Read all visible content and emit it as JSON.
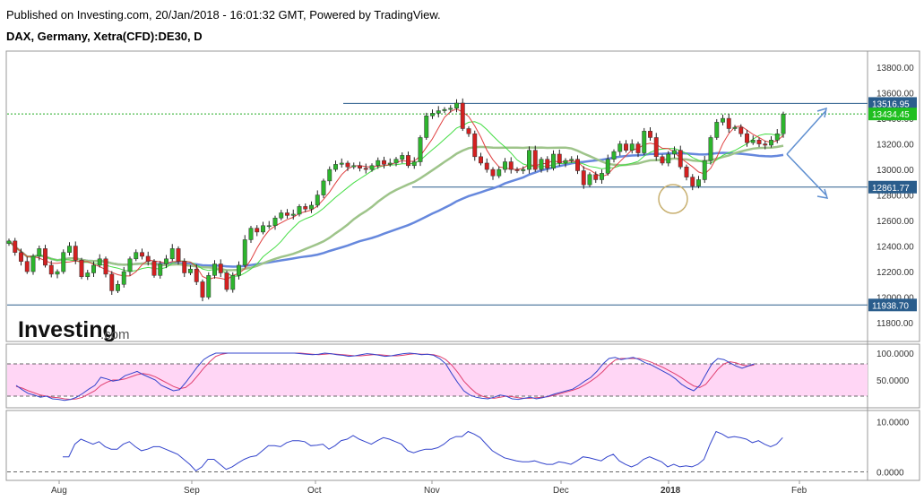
{
  "header": {
    "published": "Published on Investing.com, 20/Jan/2018 - 16:01:32 GMT, Powered by TradingView.",
    "symbol": "DAX, Germany, Xetra(CFD):DE30, D"
  },
  "logo": {
    "main": "Investing",
    "suffix": ".com"
  },
  "chart_data": [
    {
      "type": "candlestick",
      "title": "DAX, Germany, Xetra(CFD):DE30, D",
      "ylim": [
        11660,
        13920
      ],
      "y_ticks": [
        11800,
        12000,
        12200,
        12400,
        12600,
        12800,
        13000,
        13200,
        13400,
        13600,
        13800
      ],
      "x_tick_labels": [
        "Aug",
        "Sep",
        "Oct",
        "Nov",
        "Dec",
        "2018",
        "Feb"
      ],
      "price_tags": [
        {
          "label": "13516.95",
          "value": 13516.95,
          "color": "#2a5d8c"
        },
        {
          "label": "13434.45",
          "value": 13434.45,
          "color": "#1fbf1f"
        },
        {
          "label": "12861.77",
          "value": 12861.77,
          "color": "#2a5d8c"
        },
        {
          "label": "11938.70",
          "value": 11938.7,
          "color": "#2a5d8c"
        }
      ],
      "horizontal_lines": [
        13516.95,
        12861.77,
        11938.7
      ],
      "current_price_line": 13434.45,
      "closes": [
        12440,
        12350,
        12280,
        12200,
        12320,
        12380,
        12250,
        12180,
        12200,
        12350,
        12400,
        12290,
        12160,
        12190,
        12250,
        12300,
        12180,
        12050,
        12100,
        12200,
        12300,
        12350,
        12320,
        12280,
        12170,
        12260,
        12300,
        12380,
        12280,
        12190,
        12220,
        12120,
        12000,
        12170,
        12260,
        12190,
        12060,
        12170,
        12250,
        12450,
        12540,
        12510,
        12560,
        12560,
        12620,
        12660,
        12640,
        12650,
        12710,
        12690,
        12720,
        12800,
        12910,
        13000,
        13040,
        13050,
        13020,
        13030,
        13010,
        13000,
        13030,
        13070,
        13040,
        13050,
        13080,
        13110,
        13030,
        13060,
        13250,
        13420,
        13440,
        13460,
        13470,
        13480,
        13520,
        13320,
        13280,
        13100,
        13050,
        13000,
        12950,
        13000,
        13060,
        13000,
        12990,
        13000,
        13150,
        13000,
        13080,
        13010,
        13120,
        13050,
        13070,
        13080,
        12990,
        12880,
        12960,
        12920,
        12970,
        13080,
        13140,
        13200,
        13150,
        13200,
        13130,
        13300,
        13250,
        13100,
        13050,
        13120,
        13150,
        13020,
        12940,
        12870,
        12920,
        13070,
        13250,
        13370,
        13400,
        13320,
        13330,
        13280,
        13210,
        13230,
        13200,
        13190,
        13230,
        13280,
        13434
      ],
      "indicator_ma_fast": {
        "color": "#e04040"
      },
      "indicator_ma_mid": {
        "color": "#44dd44"
      },
      "indicator_ma_slow": {
        "color": "#9ec48a"
      },
      "indicator_ma_long": {
        "color": "#6688dd"
      }
    },
    {
      "type": "line",
      "name": "stochastic",
      "ylim": [
        0,
        115
      ],
      "y_ticks_labels": [
        "100.0000",
        "50.0000"
      ],
      "band": [
        20,
        80
      ],
      "k": [
        40,
        32,
        25,
        22,
        18,
        20,
        15,
        14,
        12,
        14,
        18,
        25,
        33,
        40,
        55,
        52,
        48,
        50,
        58,
        62,
        66,
        60,
        55,
        50,
        40,
        35,
        30,
        32,
        45,
        60,
        75,
        88,
        95,
        100,
        100,
        100,
        100,
        100,
        100,
        100,
        100,
        100,
        100,
        100,
        100,
        100,
        100,
        99,
        98,
        97,
        98,
        100,
        99,
        97,
        96,
        94,
        95,
        97,
        99,
        98,
        96,
        94,
        95,
        97,
        99,
        100,
        99,
        97,
        98,
        96,
        90,
        80,
        62,
        45,
        30,
        22,
        18,
        16,
        15,
        18,
        22,
        20,
        15,
        14,
        16,
        18,
        15,
        17,
        20,
        24,
        27,
        30,
        33,
        40,
        48,
        55,
        66,
        80,
        90,
        92,
        88,
        90,
        92,
        88,
        82,
        78,
        72,
        66,
        60,
        52,
        42,
        35,
        30,
        40,
        60,
        80,
        90,
        88,
        82,
        76,
        72,
        76,
        80
      ],
      "d": [
        38,
        35,
        30,
        26,
        22,
        20,
        18,
        17,
        15,
        14,
        15,
        18,
        24,
        30,
        40,
        46,
        50,
        50,
        52,
        56,
        60,
        62,
        60,
        56,
        50,
        44,
        38,
        34,
        36,
        45,
        58,
        72,
        84,
        94,
        98,
        100,
        100,
        100,
        100,
        100,
        100,
        100,
        100,
        100,
        100,
        100,
        100,
        100,
        99,
        98,
        97,
        98,
        99,
        98,
        97,
        96,
        95,
        95,
        96,
        97,
        97,
        96,
        95,
        95,
        96,
        98,
        99,
        98,
        98,
        97,
        94,
        88,
        78,
        64,
        48,
        36,
        26,
        20,
        17,
        16,
        18,
        20,
        19,
        17,
        16,
        16,
        17,
        18,
        19,
        22,
        25,
        28,
        31,
        35,
        41,
        48,
        56,
        66,
        78,
        87,
        90,
        90,
        90,
        90,
        87,
        83,
        78,
        73,
        67,
        61,
        54,
        46,
        39,
        36,
        42,
        56,
        70,
        80,
        84,
        82,
        78,
        76,
        78
      ]
    },
    {
      "type": "line",
      "name": "momentum",
      "ylim": [
        -1.5,
        12
      ],
      "y_ticks_labels": [
        "10.0000",
        "0.0000"
      ],
      "baseline": 0,
      "values": [
        3,
        3,
        5.5,
        6.5,
        6,
        5.5,
        6,
        5,
        4.5,
        4.5,
        5.5,
        6,
        5,
        4.2,
        4.5,
        5,
        5,
        4.5,
        4,
        3.5,
        2.5,
        1.5,
        0.2,
        1,
        2.5,
        2.5,
        1.5,
        0.5,
        1,
        1.8,
        2.5,
        3,
        3.2,
        4.2,
        5.2,
        5.2,
        5,
        5.8,
        6.2,
        6.2,
        6,
        5.2,
        5.3,
        5.5,
        4.5,
        5.2,
        6.2,
        6.5,
        7.2,
        6.5,
        6,
        5.5,
        6.2,
        6.8,
        6.5,
        6,
        5.5,
        4.2,
        3.8,
        4.2,
        4.5,
        4.5,
        4.8,
        5.5,
        6.5,
        7,
        7,
        8,
        7.5,
        6.8,
        5.5,
        4.2,
        3.5,
        2.8,
        2.5,
        2.2,
        2,
        2,
        2.2,
        1.8,
        1.5,
        1.5,
        2,
        1.8,
        1.5,
        2.2,
        3,
        2.8,
        2.5,
        2.2,
        3,
        3.5,
        2.2,
        1.5,
        1,
        1.5,
        2.5,
        3,
        2.5,
        2,
        1,
        1.5,
        1,
        1.2,
        1,
        1.5,
        2.5,
        5.5,
        8,
        7.5,
        6.8,
        7,
        6.8,
        6.5,
        5.8,
        6.2,
        5.5,
        5,
        5.5,
        6.8
      ]
    }
  ]
}
